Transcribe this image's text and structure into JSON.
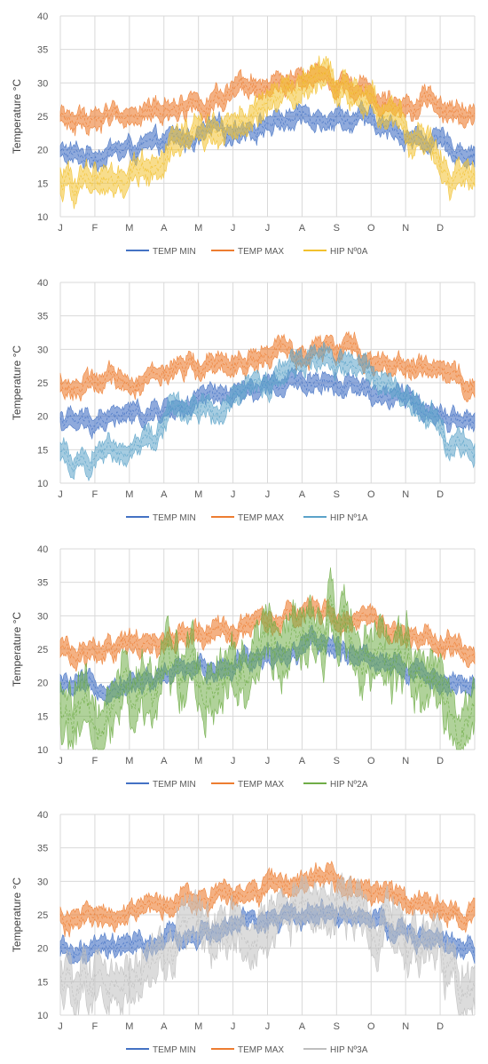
{
  "chart_data": [
    {
      "type": "line",
      "title": "",
      "xlabel": "",
      "ylabel": "Temperature °C",
      "ylim": [
        10,
        40
      ],
      "yticks": [
        "10",
        "15",
        "20",
        "25",
        "30",
        "35",
        "40"
      ],
      "categories": [
        "J",
        "F",
        "M",
        "A",
        "M",
        "J",
        "J",
        "A",
        "S",
        "O",
        "N",
        "D"
      ],
      "grid": true,
      "legend_position": "bottom",
      "series": [
        {
          "name": "TEMP MIN",
          "color": "#4472C4",
          "values": [
            19.0,
            19.8,
            20.3,
            21.5,
            22.5,
            23.5,
            24.5,
            25.5,
            24.8,
            23.0,
            21.5,
            20.0
          ]
        },
        {
          "name": "TEMP  MAX",
          "color": "#ED7D31",
          "values": [
            24.3,
            25.0,
            25.5,
            27.0,
            27.5,
            28.5,
            29.5,
            30.3,
            29.5,
            28.0,
            27.0,
            25.0
          ]
        },
        {
          "name": "HIP Nº0A",
          "color": "#F2C12E",
          "values": [
            14.8,
            16.0,
            17.5,
            22.0,
            22.5,
            25.0,
            28.0,
            31.0,
            29.0,
            25.0,
            21.0,
            15.0
          ]
        }
      ]
    },
    {
      "type": "line",
      "title": "",
      "xlabel": "",
      "ylabel": "Temperature °C",
      "ylim": [
        10,
        40
      ],
      "yticks": [
        "10",
        "15",
        "20",
        "25",
        "30",
        "35",
        "40"
      ],
      "categories": [
        "J",
        "F",
        "M",
        "A",
        "M",
        "J",
        "J",
        "A",
        "S",
        "O",
        "N",
        "D"
      ],
      "grid": true,
      "legend_position": "bottom",
      "series": [
        {
          "name": "TEMP MIN",
          "color": "#4472C4",
          "values": [
            19.0,
            19.8,
            20.3,
            21.5,
            22.5,
            23.5,
            24.5,
            25.5,
            24.8,
            23.0,
            21.5,
            20.0
          ]
        },
        {
          "name": "TEMP  MAX",
          "color": "#ED7D31",
          "values": [
            24.3,
            25.0,
            25.5,
            27.0,
            27.5,
            28.5,
            29.5,
            30.3,
            29.5,
            28.0,
            27.0,
            25.0
          ]
        },
        {
          "name": "HIP Nº1A",
          "color": "#5BA3C9",
          "values": [
            13.5,
            15.0,
            16.5,
            21.5,
            21.5,
            24.0,
            26.5,
            29.0,
            27.5,
            24.0,
            20.5,
            15.0
          ]
        }
      ]
    },
    {
      "type": "line",
      "title": "",
      "xlabel": "",
      "ylabel": "Temperature °C",
      "ylim": [
        10,
        40
      ],
      "yticks": [
        "10",
        "15",
        "20",
        "25",
        "30",
        "35",
        "40"
      ],
      "categories": [
        "J",
        "F",
        "M",
        "A",
        "M",
        "J",
        "J",
        "A",
        "S",
        "O",
        "N",
        "D"
      ],
      "grid": true,
      "legend_position": "bottom",
      "series": [
        {
          "name": "TEMP MIN",
          "color": "#4472C4",
          "values": [
            19.0,
            19.8,
            20.3,
            21.5,
            22.5,
            23.5,
            24.5,
            25.5,
            24.8,
            23.0,
            21.5,
            20.0
          ]
        },
        {
          "name": "TEMP  MAX",
          "color": "#ED7D31",
          "values": [
            24.3,
            25.0,
            25.5,
            27.0,
            27.5,
            28.5,
            29.5,
            30.3,
            29.5,
            28.0,
            27.0,
            25.0
          ]
        },
        {
          "name": "HIP Nº2A",
          "color": "#70AD47",
          "values": [
            15.5,
            16.5,
            18.5,
            22.0,
            22.0,
            24.5,
            27.0,
            29.5,
            28.0,
            24.5,
            21.5,
            16.0
          ]
        }
      ]
    },
    {
      "type": "line",
      "title": "",
      "xlabel": "",
      "ylabel": "Temperature °C",
      "ylim": [
        10,
        40
      ],
      "yticks": [
        "10",
        "15",
        "20",
        "25",
        "30",
        "35",
        "40"
      ],
      "categories": [
        "J",
        "F",
        "M",
        "A",
        "M",
        "J",
        "J",
        "A",
        "S",
        "O",
        "N",
        "D"
      ],
      "grid": true,
      "legend_position": "bottom",
      "series": [
        {
          "name": "TEMP MIN",
          "color": "#4472C4",
          "values": [
            19.0,
            19.8,
            20.3,
            21.5,
            22.5,
            23.5,
            24.5,
            25.5,
            24.8,
            23.0,
            21.5,
            20.0
          ]
        },
        {
          "name": "TEMP  MAX",
          "color": "#ED7D31",
          "values": [
            24.3,
            25.0,
            25.5,
            27.0,
            27.5,
            28.5,
            29.5,
            30.3,
            29.5,
            28.0,
            27.0,
            25.0
          ]
        },
        {
          "name": "HIP Nº3A",
          "color": "#BFBFBF",
          "values": [
            14.5,
            15.5,
            17.0,
            21.0,
            21.5,
            23.5,
            25.5,
            27.5,
            26.5,
            23.5,
            20.5,
            15.0
          ]
        }
      ]
    }
  ]
}
